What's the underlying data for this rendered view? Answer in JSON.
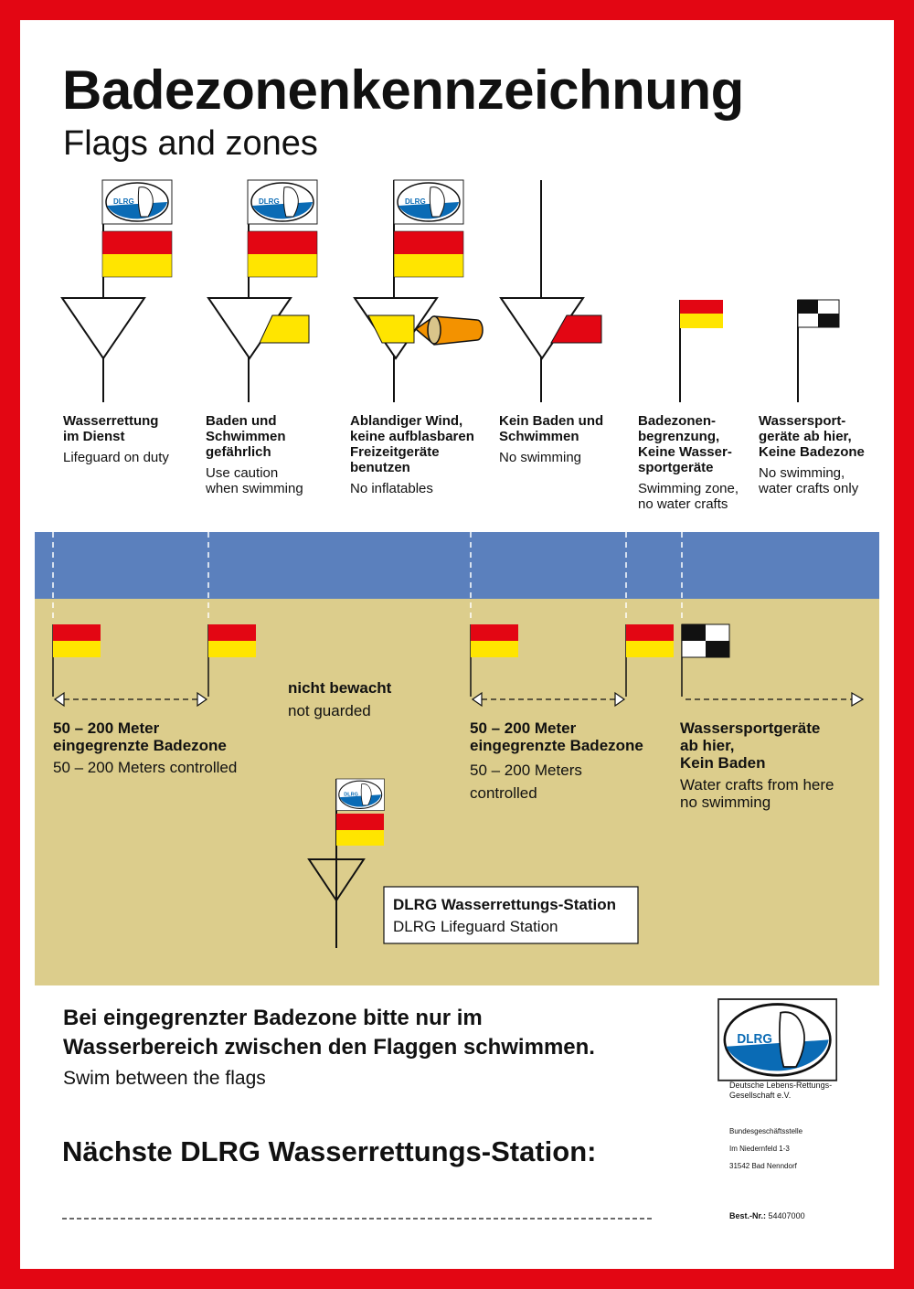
{
  "title": "Badezonenkennzeichnung",
  "subtitle": "Flags and zones",
  "signs": [
    {
      "de": "Wasserrettung\nim Dienst",
      "en": "Lifeguard on duty"
    },
    {
      "de": "Baden und\nSchwimmen\ngefährlich",
      "en": "Use caution\nwhen swimming"
    },
    {
      "de": "Ablandiger Wind,\nkeine aufblasbaren\nFreizeitgeräte\nbenutzen",
      "en": "No inflatables"
    },
    {
      "de": "Kein Baden und\nSchwimmen",
      "en": "No swimming"
    },
    {
      "de": "Badezonen-\nbegrenzung,\nKeine Wasser-\nsportgeräte",
      "en": "Swimming zone,\nno water crafts"
    },
    {
      "de": "Wassersport-\ngeräte ab hier,\nKeine Badezone",
      "en": "No swimming,\nwater crafts only"
    }
  ],
  "beach": {
    "zone1": {
      "de": "50 – 200 Meter\neingegrenzte Badezone",
      "en": "50 – 200 Meters controlled"
    },
    "unguarded": {
      "de": "nicht bewacht",
      "en": "not guarded"
    },
    "zone2": {
      "de": "50 – 200 Meter\neingegrenzte Badezone",
      "en": "50 – 200 Meters\ncontrolled"
    },
    "crafts": {
      "de": "Wassersportgeräte\nab hier,\nKein Baden",
      "en": "Water crafts from here\nno swimming"
    },
    "station": {
      "de": "DLRG Wasserrettungs-Station",
      "en": "DLRG Lifeguard Station"
    }
  },
  "footer": {
    "notice_de": "Bei eingegrenzter Badezone bitte nur im\nWasserbereich zwischen den Flaggen schwimmen.",
    "notice_en": "Swim between the flags",
    "next_station": "Nächste DLRG Wasserrettungs-Station:",
    "org": "Deutsche Lebens-Rettungs-\nGesellschaft e.V.",
    "address": [
      "Bundesgeschäftsstelle",
      "Im Niedernfeld 1-3",
      "31542 Bad Nenndorf"
    ],
    "order_label": "Best.-Nr.:",
    "order_no": "54407000",
    "logo_text": "DLRG"
  },
  "colors": {
    "red": "#e30613",
    "yellow": "#ffe500",
    "water": "#5b80bd",
    "sand": "#dccd8c",
    "orange": "#f39200",
    "dlrg_blue": "#0a6bb5"
  }
}
